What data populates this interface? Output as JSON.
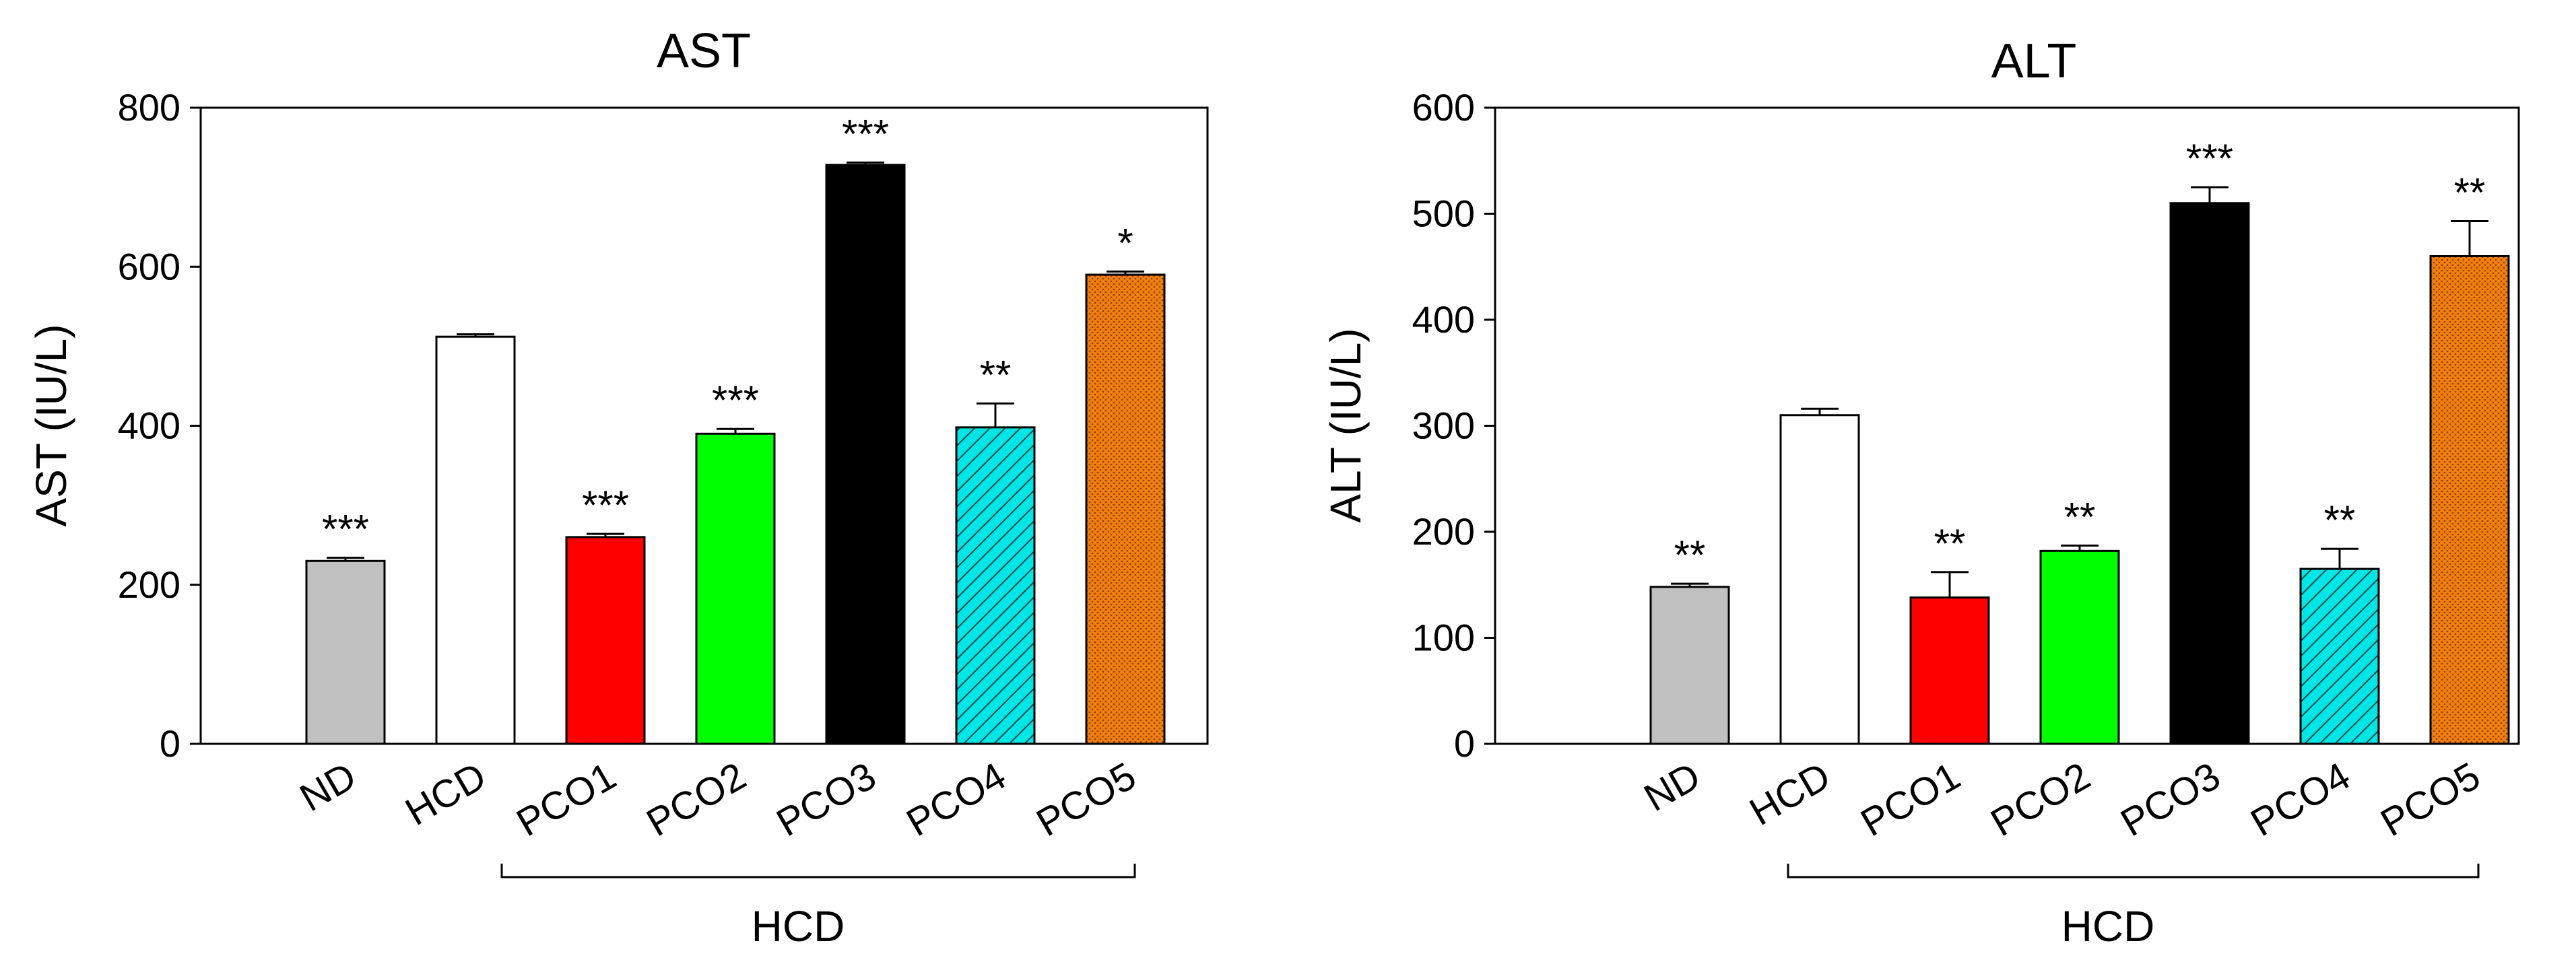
{
  "chart_data": [
    {
      "type": "bar",
      "title": "AST",
      "xlabel": "",
      "ylabel": "AST (IU/L)",
      "ylim": [
        0,
        800
      ],
      "yticks": [
        0,
        200,
        400,
        600,
        800
      ],
      "categories": [
        "ND",
        "HCD",
        "PCO1",
        "PCO2",
        "PCO3",
        "PCO4",
        "PCO5"
      ],
      "values": [
        230,
        512,
        260,
        390,
        728,
        398,
        590
      ],
      "errors": [
        4,
        3,
        4,
        6,
        3,
        30,
        4
      ],
      "significance": [
        "***",
        "",
        "***",
        "***",
        "***",
        "**",
        "*"
      ],
      "bar_colors": [
        "#c0c0c0",
        "#ffffff",
        "#ff0000",
        "#00ff00",
        "#000000",
        "#00e5e5",
        "#f07f10"
      ],
      "bar_patterns": [
        "solid",
        "solid",
        "solid",
        "solid",
        "solid",
        "hatch",
        "dots"
      ],
      "group_bracket_label": "HCD"
    },
    {
      "type": "bar",
      "title": "ALT",
      "xlabel": "",
      "ylabel": "ALT (IU/L)",
      "ylim": [
        0,
        600
      ],
      "yticks": [
        0,
        100,
        200,
        300,
        400,
        500,
        600
      ],
      "categories": [
        "ND",
        "HCD",
        "PCO1",
        "PCO2",
        "PCO3",
        "PCO4",
        "PCO5"
      ],
      "values": [
        148,
        310,
        138,
        182,
        510,
        165,
        460
      ],
      "errors": [
        3,
        6,
        24,
        5,
        15,
        19,
        33
      ],
      "significance": [
        "**",
        "",
        "**",
        "**",
        "***",
        "**",
        "**"
      ],
      "bar_colors": [
        "#c0c0c0",
        "#ffffff",
        "#ff0000",
        "#00ff00",
        "#000000",
        "#00e5e5",
        "#f07f10"
      ],
      "bar_patterns": [
        "solid",
        "solid",
        "solid",
        "solid",
        "solid",
        "hatch",
        "dots"
      ],
      "group_bracket_label": "HCD"
    }
  ]
}
